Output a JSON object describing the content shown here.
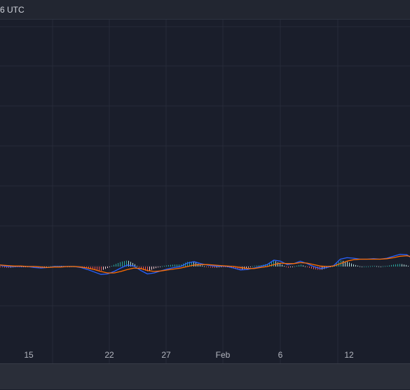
{
  "header": {
    "timezone_label": "6 UTC"
  },
  "colors": {
    "background": "#1a1e2b",
    "grid": "#262b38",
    "macd_line": "#2962ff",
    "signal_line": "#ff6d00",
    "hist_up_strong": "#26a69a",
    "hist_up_weak": "#b2dfdb",
    "hist_down_strong": "#ef5350",
    "hist_down_weak": "#ffcdd2"
  },
  "x_axis": {
    "labels": [
      "15",
      "22",
      "27",
      "Feb",
      "6",
      "12"
    ]
  },
  "chart_data": {
    "type": "line",
    "indicator": "MACD",
    "x_labels": [
      "15",
      "22",
      "27",
      "Feb",
      "6",
      "12"
    ],
    "grid": true,
    "series": [
      {
        "values": [
          0.9,
          0.2,
          0.0,
          0.0,
          0.0,
          0.0,
          -0.2,
          -0.3,
          -0.2,
          0.0,
          0.0,
          0.0,
          0.0,
          -0.2,
          -0.6,
          -1.1,
          -1.6,
          -1.5,
          -1.0,
          -0.3,
          0.3,
          0.1,
          -0.8,
          -1.5,
          -1.3,
          -0.9,
          -0.5,
          -0.2,
          0.0,
          0.7,
          1.0,
          0.6,
          0.3,
          0.1,
          0.1,
          0.0,
          -0.3,
          -0.7,
          -0.6,
          -0.3,
          0.0,
          0.4,
          1.3,
          1.1,
          0.4,
          0.6,
          1.1,
          0.6,
          0.0,
          -0.4,
          -0.2,
          0.2,
          1.5,
          1.8,
          1.7,
          1.5,
          1.5,
          1.6,
          1.5,
          1.7,
          2.1,
          2.5,
          2.4,
          1.5
        ]
      },
      {
        "values": [
          0.4,
          0.3,
          0.2,
          0.1,
          0.1,
          0.0,
          0.0,
          -0.1,
          -0.2,
          -0.1,
          -0.1,
          0.0,
          0.0,
          -0.1,
          -0.3,
          -0.6,
          -1.0,
          -1.3,
          -1.3,
          -1.0,
          -0.6,
          -0.3,
          -0.4,
          -0.8,
          -1.0,
          -0.9,
          -0.7,
          -0.5,
          -0.3,
          0.0,
          0.3,
          0.4,
          0.4,
          0.3,
          0.2,
          0.1,
          0.0,
          -0.2,
          -0.4,
          -0.4,
          -0.2,
          0.0,
          0.4,
          0.7,
          0.6,
          0.6,
          0.8,
          0.7,
          0.4,
          0.1,
          0.0,
          0.1,
          0.6,
          1.1,
          1.4,
          1.5,
          1.5,
          1.5,
          1.5,
          1.6,
          1.8,
          2.1,
          2.2,
          1.9
        ]
      }
    ]
  }
}
